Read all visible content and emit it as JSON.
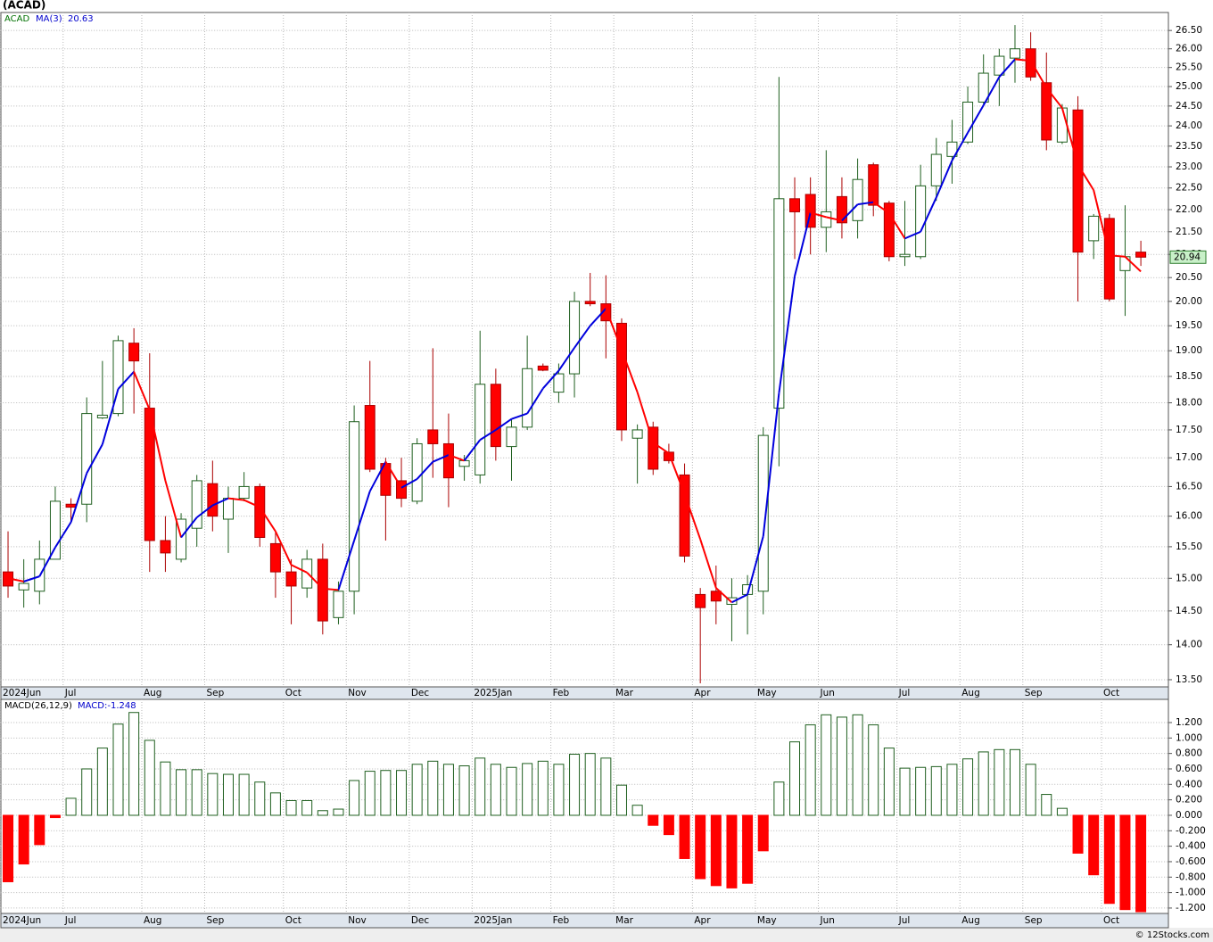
{
  "chart_data": [
    {
      "type": "candlestick",
      "title": "(ACAD)",
      "symbol": "ACAD",
      "categories": [
        "2024Jun",
        null,
        null,
        null,
        "Jul",
        null,
        null,
        null,
        null,
        "Aug",
        null,
        null,
        null,
        "Sep",
        null,
        null,
        null,
        null,
        "Oct",
        null,
        null,
        null,
        "Nov",
        null,
        null,
        null,
        "Dec",
        null,
        null,
        null,
        "2025Jan",
        null,
        null,
        null,
        null,
        "Feb",
        null,
        null,
        null,
        "Mar",
        null,
        null,
        null,
        null,
        "Apr",
        null,
        null,
        null,
        "May",
        null,
        null,
        null,
        "Jun",
        null,
        null,
        null,
        null,
        "Jul",
        null,
        null,
        null,
        "Aug",
        null,
        null,
        null,
        "Sep",
        null,
        null,
        null,
        null,
        "Oct",
        null,
        null
      ],
      "open": [
        15.1,
        14.82,
        14.8,
        15.3,
        16.2,
        16.2,
        17.72,
        17.8,
        19.15,
        17.9,
        15.6,
        15.3,
        15.8,
        16.55,
        15.95,
        16.3,
        16.5,
        15.55,
        15.1,
        14.85,
        15.3,
        14.4,
        14.8,
        17.95,
        16.9,
        16.6,
        16.25,
        17.5,
        17.25,
        16.85,
        16.7,
        18.35,
        17.2,
        17.55,
        18.7,
        18.2,
        18.55,
        20.0,
        19.95,
        19.55,
        17.35,
        17.55,
        17.1,
        16.7,
        14.75,
        14.8,
        14.6,
        14.75,
        14.8,
        17.9,
        22.25,
        22.35,
        21.6,
        22.3,
        21.75,
        23.05,
        22.15,
        20.95,
        20.95,
        22.55,
        23.25,
        23.6,
        24.6,
        25.3,
        25.75,
        26.0,
        25.1,
        23.6,
        24.4,
        21.3,
        21.8,
        20.65,
        21.05
      ],
      "high": [
        15.75,
        15.3,
        15.6,
        16.5,
        16.3,
        18.1,
        18.8,
        19.3,
        19.45,
        18.95,
        16.0,
        16.05,
        16.7,
        16.95,
        16.5,
        16.75,
        16.55,
        15.75,
        15.3,
        15.45,
        15.55,
        14.95,
        17.95,
        18.8,
        17.0,
        17.0,
        17.35,
        19.05,
        17.8,
        17.05,
        19.4,
        18.65,
        17.7,
        19.3,
        18.75,
        18.75,
        20.2,
        20.6,
        20.55,
        19.65,
        17.6,
        17.65,
        17.25,
        16.9,
        14.85,
        15.2,
        15.0,
        15.05,
        17.55,
        25.25,
        22.75,
        22.75,
        23.4,
        22.75,
        23.2,
        23.1,
        22.2,
        22.2,
        23.05,
        23.7,
        24.15,
        25.0,
        25.85,
        26.0,
        26.65,
        26.45,
        25.9,
        24.55,
        24.75,
        21.9,
        21.9,
        22.1,
        21.3
      ],
      "low": [
        14.7,
        14.55,
        14.6,
        15.35,
        15.9,
        15.9,
        17.7,
        17.75,
        17.8,
        15.1,
        15.1,
        15.25,
        15.5,
        15.75,
        15.4,
        16.25,
        15.5,
        14.7,
        14.3,
        14.7,
        14.15,
        14.3,
        14.45,
        16.75,
        15.6,
        16.15,
        16.2,
        16.65,
        16.15,
        16.6,
        16.55,
        16.95,
        16.6,
        17.5,
        18.6,
        18.0,
        18.1,
        19.9,
        18.85,
        17.3,
        16.55,
        16.7,
        16.9,
        15.25,
        13.45,
        14.3,
        14.05,
        14.15,
        14.45,
        16.85,
        20.9,
        21.0,
        21.05,
        21.35,
        21.35,
        21.85,
        20.85,
        20.75,
        20.9,
        22.2,
        22.6,
        23.55,
        24.55,
        24.5,
        25.1,
        25.15,
        23.4,
        23.55,
        20.0,
        20.9,
        20.0,
        19.7,
        20.75
      ],
      "close": [
        14.88,
        14.92,
        15.3,
        16.25,
        16.15,
        17.8,
        17.77,
        19.2,
        18.8,
        15.6,
        15.4,
        15.95,
        16.6,
        16.0,
        16.3,
        16.5,
        15.65,
        15.1,
        14.88,
        15.3,
        14.35,
        14.8,
        17.65,
        16.8,
        16.35,
        16.3,
        17.25,
        17.25,
        16.65,
        16.95,
        18.35,
        17.2,
        17.55,
        18.65,
        18.62,
        18.55,
        20.0,
        19.95,
        19.6,
        17.5,
        17.5,
        16.8,
        16.95,
        15.35,
        14.55,
        14.65,
        14.7,
        14.9,
        17.4,
        22.25,
        21.95,
        21.6,
        21.95,
        21.7,
        22.7,
        22.1,
        20.95,
        21.0,
        22.55,
        23.3,
        23.6,
        24.6,
        25.35,
        25.8,
        26.0,
        25.25,
        23.65,
        24.45,
        21.05,
        21.85,
        20.05,
        20.95,
        20.94
      ],
      "up_color": "#ffffff",
      "up_edge_color": "#1f5f1f",
      "down_color": "#ff0000",
      "down_edge_color": "#aa0000",
      "ma": {
        "name": "MA(3)",
        "rising_color": "#0000dd",
        "falling_color": "#ff0000",
        "values": [
          15.0,
          14.95,
          15.03,
          15.49,
          15.9,
          16.73,
          17.24,
          18.26,
          18.59,
          17.87,
          16.6,
          15.65,
          15.98,
          16.18,
          16.3,
          16.27,
          16.15,
          15.75,
          15.21,
          15.09,
          14.84,
          14.82,
          15.6,
          16.42,
          16.93,
          16.48,
          16.63,
          16.93,
          17.05,
          16.95,
          17.32,
          17.5,
          17.7,
          17.8,
          18.27,
          18.61,
          19.06,
          19.5,
          19.85,
          19.02,
          18.2,
          17.27,
          17.08,
          16.37,
          15.62,
          14.85,
          14.63,
          14.75,
          15.67,
          18.18,
          20.53,
          21.93,
          21.83,
          21.75,
          22.12,
          22.17,
          21.92,
          21.35,
          21.5,
          22.28,
          23.15,
          23.83,
          24.52,
          25.25,
          25.72,
          25.68,
          24.97,
          24.45,
          23.05,
          22.45,
          20.98,
          20.95,
          20.63
        ]
      },
      "log_scale": true,
      "grid": true,
      "last_price_color": "#c8f0c8",
      "ylim": [
        13.4,
        27.0
      ],
      "yticks": [
        {
          "value": 13.5,
          "label": "13.50"
        },
        {
          "value": 14,
          "label": "14.00"
        },
        {
          "value": 14.5,
          "label": "14.50"
        },
        {
          "value": 15,
          "label": "15.00"
        },
        {
          "value": 15.5,
          "label": "15.50"
        },
        {
          "value": 16,
          "label": "16.00"
        },
        {
          "value": 16.5,
          "label": "16.50"
        },
        {
          "value": 17,
          "label": "17.00"
        },
        {
          "value": 17.5,
          "label": "17.50"
        },
        {
          "value": 18,
          "label": "18.00"
        },
        {
          "value": 18.5,
          "label": "18.50"
        },
        {
          "value": 19,
          "label": "19.00"
        },
        {
          "value": 19.5,
          "label": "19.50"
        },
        {
          "value": 20,
          "label": "20.00"
        },
        {
          "value": 20.5,
          "label": "20.50"
        },
        {
          "value": 21,
          "label": "21.00"
        },
        {
          "value": 21.5,
          "label": "21.50"
        },
        {
          "value": 22,
          "label": "22.00"
        },
        {
          "value": 22.5,
          "label": "22.50"
        },
        {
          "value": 23,
          "label": "23.00"
        },
        {
          "value": 23.5,
          "label": "23.50"
        },
        {
          "value": 24,
          "label": "24.00"
        },
        {
          "value": 24.5,
          "label": "24.50"
        },
        {
          "value": 25,
          "label": "25.00"
        },
        {
          "value": 25.5,
          "label": "25.50"
        },
        {
          "value": 26,
          "label": "26.00"
        },
        {
          "value": 26.5,
          "label": "26.50"
        }
      ]
    },
    {
      "type": "bar",
      "title": "MACD(26,12,9)",
      "last_label": "MACD:-1.248",
      "values": [
        -0.86,
        -0.63,
        -0.38,
        -0.03,
        0.22,
        0.6,
        0.87,
        1.18,
        1.33,
        0.97,
        0.69,
        0.59,
        0.59,
        0.54,
        0.53,
        0.53,
        0.43,
        0.29,
        0.19,
        0.19,
        0.06,
        0.08,
        0.45,
        0.57,
        0.58,
        0.58,
        0.66,
        0.7,
        0.66,
        0.64,
        0.74,
        0.66,
        0.62,
        0.67,
        0.7,
        0.66,
        0.79,
        0.8,
        0.74,
        0.39,
        0.13,
        -0.13,
        -0.25,
        -0.56,
        -0.82,
        -0.91,
        -0.94,
        -0.88,
        -0.46,
        0.43,
        0.95,
        1.17,
        1.3,
        1.27,
        1.3,
        1.17,
        0.87,
        0.61,
        0.62,
        0.63,
        0.66,
        0.73,
        0.82,
        0.85,
        0.85,
        0.66,
        0.27,
        0.09,
        -0.49,
        -0.77,
        -1.14,
        -1.22,
        -1.248
      ],
      "positive_color": "#ffffff",
      "positive_edge_color": "#1f5f1f",
      "negative_color": "#ff0000",
      "grid": true,
      "ylim": [
        -1.27,
        1.5
      ],
      "yticks": [
        {
          "value": -1.2,
          "label": "-1.200"
        },
        {
          "value": -1.0,
          "label": "-1.000"
        },
        {
          "value": -0.8,
          "label": "-0.800"
        },
        {
          "value": -0.6,
          "label": "-0.600"
        },
        {
          "value": -0.4,
          "label": "-0.400"
        },
        {
          "value": -0.2,
          "label": "-0.200"
        },
        {
          "value": 0,
          "label": "0.000"
        },
        {
          "value": 0.2,
          "label": "0.200"
        },
        {
          "value": 0.4,
          "label": "0.400"
        },
        {
          "value": 0.6,
          "label": "0.600"
        },
        {
          "value": 0.8,
          "label": "0.800"
        },
        {
          "value": 1.0,
          "label": "1.000"
        },
        {
          "value": 1.2,
          "label": "1.200"
        }
      ]
    }
  ],
  "footer": "© 12Stocks.com"
}
